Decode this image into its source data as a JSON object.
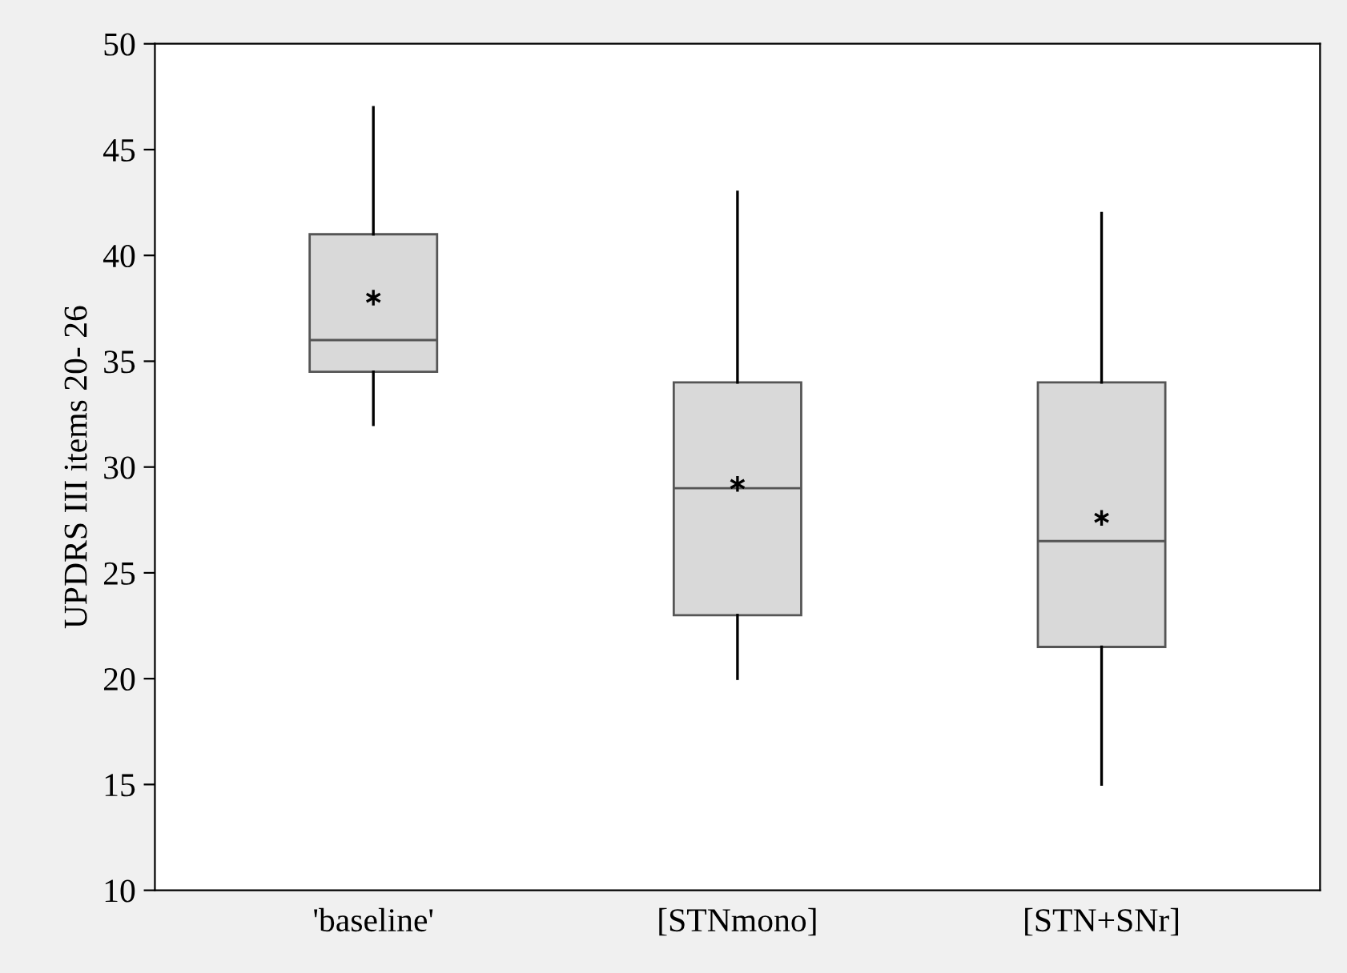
{
  "chart_data": {
    "type": "box",
    "ylabel": "UPDRS III items 20- 26",
    "categories": [
      "'baseline'",
      "[STNmono]",
      "[STN+SNr]"
    ],
    "boxes": [
      {
        "low": 32,
        "q1": 34.5,
        "median": 36,
        "q3": 41,
        "high": 47,
        "mean": 38
      },
      {
        "low": 20,
        "q1": 23,
        "median": 29,
        "q3": 34,
        "high": 43,
        "mean": 29.2
      },
      {
        "low": 15,
        "q1": 21.5,
        "median": 26.5,
        "q3": 34,
        "high": 42,
        "mean": 27.6
      }
    ],
    "color": "#d9d9d9",
    "ylim": [
      10,
      50
    ],
    "yticks": [
      10,
      15,
      20,
      25,
      30,
      35,
      40,
      45,
      50
    ],
    "grid": false
  }
}
